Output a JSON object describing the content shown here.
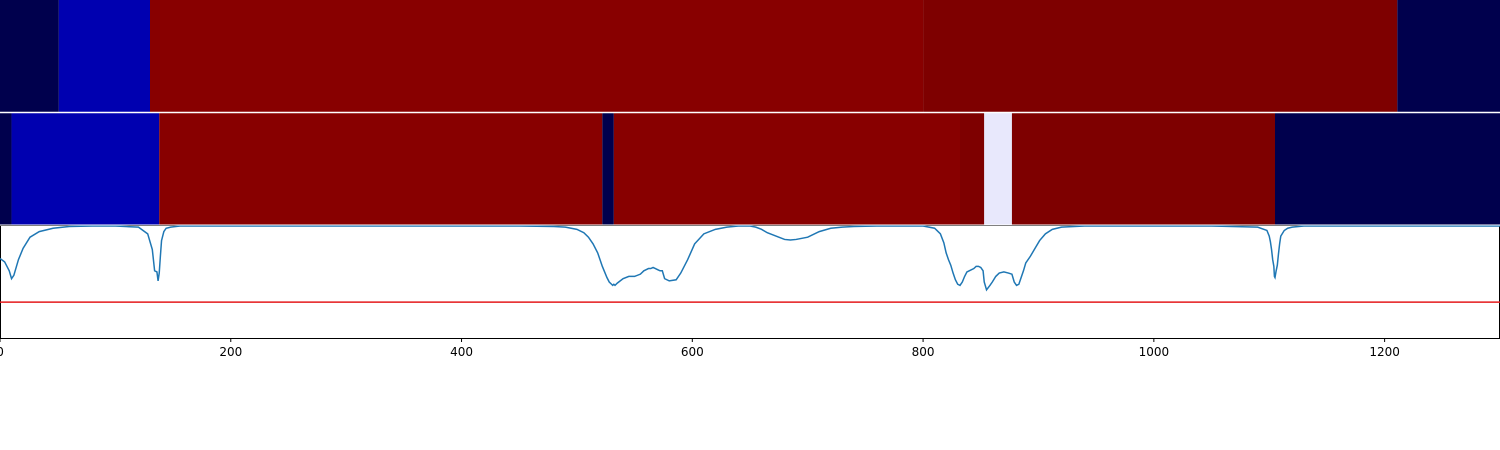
{
  "chart_data": [
    {
      "type": "heatmap",
      "panel": "top",
      "xlim": [
        0,
        1300
      ],
      "segments": [
        {
          "start": 0,
          "end": 51,
          "color": "#00004d"
        },
        {
          "start": 51,
          "end": 130,
          "color": "#0000b0"
        },
        {
          "start": 130,
          "end": 800,
          "color": "#880000"
        },
        {
          "start": 800,
          "end": 1211,
          "color": "#7e0000"
        },
        {
          "start": 1211,
          "end": 1300,
          "color": "#00004d"
        }
      ]
    },
    {
      "type": "heatmap",
      "panel": "middle",
      "xlim": [
        0,
        1300
      ],
      "segments": [
        {
          "start": 0,
          "end": 10,
          "color": "#00004d"
        },
        {
          "start": 10,
          "end": 138,
          "color": "#0000b0"
        },
        {
          "start": 138,
          "end": 522,
          "color": "#880000"
        },
        {
          "start": 522,
          "end": 532,
          "color": "#00004d"
        },
        {
          "start": 532,
          "end": 832,
          "color": "#880000"
        },
        {
          "start": 832,
          "end": 853,
          "color": "#7e0000"
        },
        {
          "start": 853,
          "end": 877,
          "color": "#e8e8fc"
        },
        {
          "start": 877,
          "end": 1105,
          "color": "#7e0000"
        },
        {
          "start": 1105,
          "end": 1300,
          "color": "#00004d"
        }
      ]
    },
    {
      "type": "line",
      "panel": "bottom",
      "xlim": [
        0,
        1300
      ],
      "ylim": [
        0,
        1
      ],
      "x_ticks": [
        "0",
        "200",
        "400",
        "600",
        "800",
        "1000",
        "1200"
      ],
      "x_tick_values": [
        0,
        200,
        400,
        600,
        800,
        1000,
        1200
      ],
      "threshold": {
        "value": 0.32,
        "color": "#e41a1c"
      },
      "series": [
        {
          "color": "#1f77b4",
          "x": [
            0,
            4,
            8,
            10,
            12,
            16,
            20,
            26,
            34,
            46,
            60,
            80,
            100,
            120,
            128,
            132,
            134,
            136,
            137,
            138,
            139,
            140,
            142,
            144,
            148,
            156,
            170,
            200,
            250,
            300,
            350,
            400,
            450,
            480,
            490,
            500,
            506,
            510,
            514,
            518,
            520,
            522,
            524,
            526,
            528,
            530,
            531,
            532,
            533,
            535,
            540,
            545,
            550,
            555,
            558,
            560,
            562,
            564,
            566,
            568,
            570,
            572,
            574,
            576,
            580,
            586,
            590,
            596,
            602,
            610,
            620,
            630,
            640,
            650,
            655,
            660,
            665,
            670,
            675,
            680,
            685,
            690,
            700,
            710,
            720,
            730,
            740,
            760,
            780,
            800,
            810,
            815,
            818,
            820,
            822,
            824,
            826,
            828,
            830,
            832,
            834,
            836,
            838,
            840,
            844,
            846,
            848,
            850,
            852,
            853,
            855,
            858,
            860,
            863,
            866,
            870,
            874,
            877,
            879,
            881,
            883,
            885,
            887,
            889,
            893,
            897,
            901,
            906,
            912,
            920,
            940,
            980,
            1050,
            1090,
            1098,
            1100,
            1101,
            1102,
            1103,
            1104,
            1104.5,
            1105,
            1106,
            1107,
            1108,
            1109,
            1110,
            1113,
            1116,
            1120,
            1130,
            1150,
            1200,
            1250,
            1300
          ],
          "y": [
            0.71,
            0.68,
            0.6,
            0.53,
            0.56,
            0.7,
            0.8,
            0.9,
            0.95,
            0.98,
            0.995,
            1.0,
            1.0,
            0.99,
            0.93,
            0.79,
            0.6,
            0.59,
            0.51,
            0.58,
            0.73,
            0.87,
            0.95,
            0.98,
            0.99,
            1.0,
            1.0,
            1.0,
            1.0,
            1.0,
            1.0,
            1.0,
            1.0,
            0.995,
            0.99,
            0.97,
            0.94,
            0.9,
            0.84,
            0.76,
            0.7,
            0.64,
            0.59,
            0.54,
            0.5,
            0.48,
            0.47,
            0.48,
            0.47,
            0.49,
            0.53,
            0.55,
            0.55,
            0.57,
            0.6,
            0.61,
            0.62,
            0.62,
            0.63,
            0.62,
            0.61,
            0.6,
            0.6,
            0.53,
            0.51,
            0.52,
            0.58,
            0.7,
            0.84,
            0.93,
            0.97,
            0.99,
            1.0,
            1.0,
            0.99,
            0.97,
            0.94,
            0.92,
            0.9,
            0.88,
            0.875,
            0.88,
            0.9,
            0.95,
            0.98,
            0.99,
            0.995,
            1.0,
            1.0,
            1.0,
            0.98,
            0.93,
            0.85,
            0.76,
            0.7,
            0.65,
            0.58,
            0.52,
            0.48,
            0.47,
            0.5,
            0.55,
            0.59,
            0.6,
            0.62,
            0.64,
            0.64,
            0.63,
            0.6,
            0.5,
            0.43,
            0.47,
            0.5,
            0.55,
            0.58,
            0.59,
            0.58,
            0.57,
            0.5,
            0.47,
            0.48,
            0.54,
            0.6,
            0.67,
            0.73,
            0.8,
            0.87,
            0.93,
            0.97,
            0.99,
            1.0,
            1.0,
            1.0,
            0.99,
            0.96,
            0.91,
            0.86,
            0.79,
            0.7,
            0.64,
            0.55,
            0.54,
            0.6,
            0.65,
            0.75,
            0.84,
            0.91,
            0.96,
            0.98,
            0.99,
            1.0,
            1.0,
            1.0,
            1.0,
            1.0
          ]
        }
      ]
    }
  ]
}
